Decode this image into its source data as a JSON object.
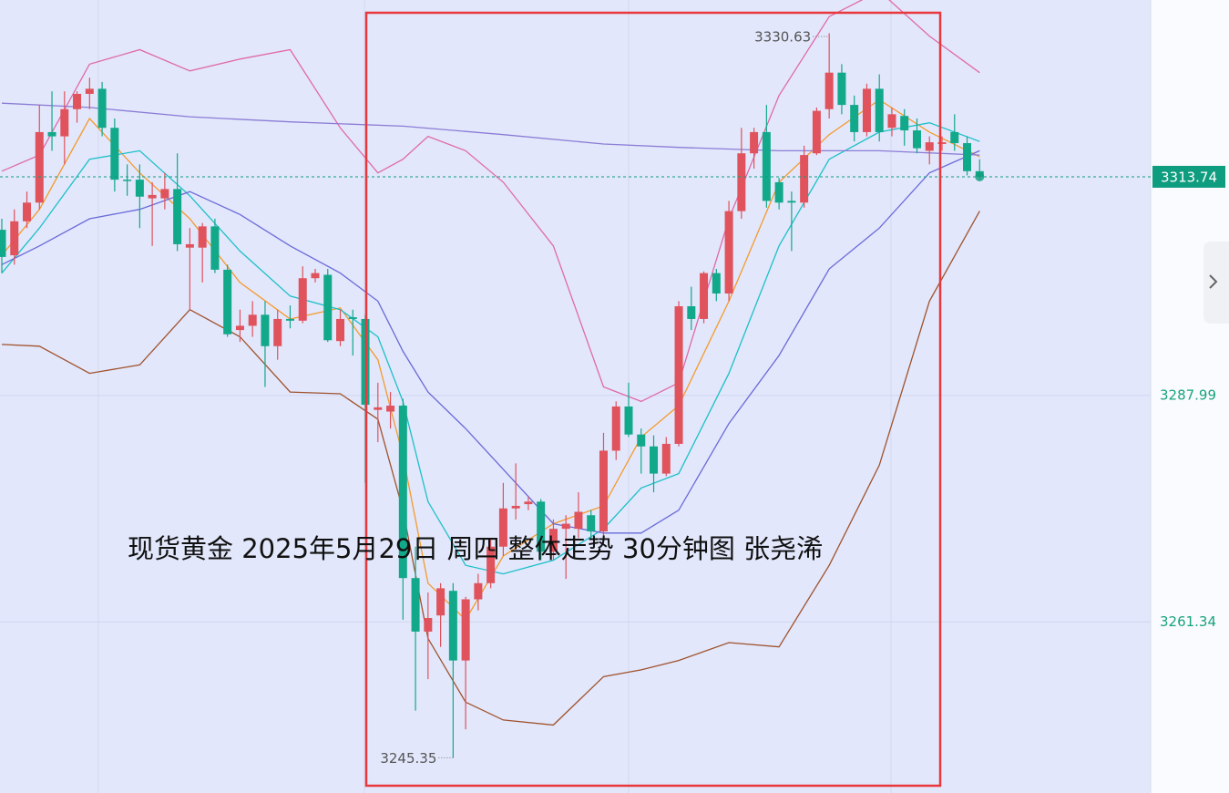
{
  "chart_data": {
    "type": "candlestick",
    "title": "现货黄金 2025年5月29日 周四 整体走势 30分钟图 张尧浠",
    "up_color": "#e0525c",
    "down_color": "#12a88a",
    "open": [
      3307.5,
      3304.5,
      3308.5,
      3310.7,
      3319.0,
      3318.5,
      3321.7,
      3323.5,
      3324.1,
      3319.5,
      3313.4,
      3313.4,
      3311.2,
      3311.2,
      3312.3,
      3305.4,
      3305.4,
      3307.9,
      3302.8,
      3295.7,
      3296.2,
      3297.5,
      3293.8,
      3297.0,
      3296.8,
      3301.8,
      3302.2,
      3294.4,
      3297.2,
      3297.0,
      3286.3,
      3286.1,
      3286.8,
      3266.5,
      3260.2,
      3262.1,
      3265.0,
      3256.8,
      3264.0,
      3265.9,
      3270.2,
      3274.7,
      3275.2,
      3275.5,
      3269.6,
      3272.3,
      3272.3,
      3273.9,
      3272.0,
      3281.5,
      3286.7,
      3283.4,
      3282.0,
      3278.8,
      3282.3,
      3298.5,
      3297.0,
      3302.4,
      3300.0,
      3309.7,
      3316.5,
      3319.0,
      3313.1,
      3310.9,
      3310.7,
      3316.5,
      3321.7,
      3326.0,
      3322.2,
      3319.0,
      3324.1,
      3319.5,
      3320.9,
      3319.2,
      3316.8,
      3317.6,
      3319.0,
      3317.7,
      3314.4
    ],
    "high": [
      3308.8,
      3309.9,
      3312.0,
      3322.2,
      3323.8,
      3323.8,
      3323.8,
      3325.4,
      3324.9,
      3320.6,
      3315.2,
      3315.2,
      3313.1,
      3314.2,
      3316.5,
      3307.7,
      3308.3,
      3308.8,
      3303.4,
      3298.1,
      3299.1,
      3299.1,
      3298.1,
      3298.6,
      3303.2,
      3302.9,
      3302.9,
      3298.1,
      3298.1,
      3297.5,
      3289.5,
      3288.4,
      3287.6,
      3270.2,
      3264.8,
      3265.9,
      3265.9,
      3264.3,
      3267.0,
      3271.2,
      3277.7,
      3280.0,
      3276.1,
      3275.8,
      3273.4,
      3273.9,
      3276.6,
      3274.5,
      3283.6,
      3287.3,
      3289.5,
      3284.1,
      3283.3,
      3283.1,
      3299.1,
      3300.8,
      3302.6,
      3302.9,
      3310.9,
      3319.5,
      3319.5,
      3322.2,
      3313.6,
      3312.0,
      3317.4,
      3321.9,
      3330.63,
      3327.0,
      3323.3,
      3324.7,
      3325.8,
      3321.9,
      3321.7,
      3320.6,
      3318.5,
      3318.5,
      3321.1,
      3318.5,
      3315.8
    ],
    "low": [
      3302.4,
      3303.4,
      3307.7,
      3309.9,
      3316.8,
      3315.2,
      3320.1,
      3321.7,
      3318.5,
      3312.0,
      3311.5,
      3307.7,
      3305.6,
      3309.9,
      3305.0,
      3298.1,
      3301.3,
      3302.4,
      3294.9,
      3294.3,
      3294.9,
      3289.0,
      3292.2,
      3295.9,
      3296.5,
      3301.3,
      3294.3,
      3293.8,
      3292.7,
      3277.7,
      3282.5,
      3284.1,
      3261.6,
      3250.9,
      3254.6,
      3258.4,
      3245.35,
      3248.7,
      3262.7,
      3265.3,
      3269.1,
      3273.4,
      3274.5,
      3268.6,
      3268.6,
      3266.4,
      3271.2,
      3271.2,
      3271.2,
      3280.4,
      3283.1,
      3278.8,
      3276.6,
      3278.5,
      3282.0,
      3295.7,
      3296.5,
      3299.1,
      3299.1,
      3308.8,
      3314.7,
      3310.1,
      3309.9,
      3305.0,
      3310.1,
      3316.3,
      3320.6,
      3321.1,
      3317.9,
      3318.5,
      3317.9,
      3318.5,
      3317.4,
      3316.5,
      3315.2,
      3316.8,
      3316.8,
      3313.9,
      3313.4
    ],
    "close": [
      3304.3,
      3308.5,
      3310.7,
      3319.0,
      3318.5,
      3321.7,
      3323.5,
      3324.1,
      3319.5,
      3313.4,
      3313.3,
      3311.4,
      3311.6,
      3312.3,
      3305.8,
      3305.8,
      3307.9,
      3302.8,
      3295.2,
      3296.2,
      3297.5,
      3293.8,
      3297.0,
      3296.8,
      3301.8,
      3302.4,
      3294.5,
      3297.0,
      3297.0,
      3286.9,
      3286.6,
      3286.8,
      3266.5,
      3260.2,
      3261.8,
      3265.3,
      3256.8,
      3264.0,
      3265.9,
      3270.2,
      3274.7,
      3275.0,
      3275.5,
      3269.6,
      3272.3,
      3272.9,
      3274.3,
      3272.0,
      3281.5,
      3286.7,
      3283.4,
      3282.0,
      3278.8,
      3282.3,
      3298.5,
      3297.0,
      3302.4,
      3300.0,
      3309.7,
      3316.5,
      3319.0,
      3310.9,
      3310.7,
      3310.7,
      3316.3,
      3321.5,
      3326.0,
      3322.2,
      3319.0,
      3324.1,
      3319.0,
      3321.1,
      3319.2,
      3317.1,
      3317.8,
      3317.8,
      3317.7,
      3314.4,
      3313.74
    ],
    "lines": [
      {
        "color": "#e06aa8",
        "x": [
          0,
          3,
          7,
          11,
          15,
          19,
          23,
          27,
          30,
          32,
          34,
          37,
          40,
          44,
          48,
          51,
          54,
          58,
          62,
          66,
          70,
          74,
          78
        ],
        "values": [
          3314.4,
          3316.3,
          3327.0,
          3328.7,
          3326.2,
          3327.6,
          3328.7,
          3319.5,
          3314.2,
          3315.8,
          3318.5,
          3316.8,
          3313.1,
          3305.6,
          3289.0,
          3287.3,
          3289.5,
          3308.8,
          3323.3,
          3332.6,
          3335.6,
          3330.3,
          3326.0
        ]
      },
      {
        "color": "#a0522d",
        "x": [
          0,
          3,
          7,
          11,
          15,
          19,
          23,
          27,
          30,
          32,
          34,
          37,
          40,
          44,
          48,
          51,
          54,
          58,
          62,
          66,
          70,
          74,
          78
        ],
        "values": [
          3294.0,
          3293.8,
          3290.6,
          3291.6,
          3298.1,
          3294.9,
          3288.4,
          3288.2,
          3285.2,
          3274.5,
          3259.4,
          3251.9,
          3249.8,
          3249.2,
          3254.9,
          3255.7,
          3256.8,
          3258.9,
          3258.4,
          3268.0,
          3279.8,
          3299.1,
          3309.7
        ]
      },
      {
        "color": "#f59a2c",
        "x": [
          0,
          3,
          7,
          11,
          15,
          19,
          23,
          27,
          30,
          32,
          34,
          37,
          40,
          44,
          48,
          51,
          54,
          58,
          62,
          66,
          70,
          74,
          78
        ],
        "values": [
          3304.5,
          3309.9,
          3320.6,
          3314.2,
          3308.8,
          3301.3,
          3297.0,
          3298.3,
          3292.2,
          3280.9,
          3265.9,
          3261.6,
          3269.1,
          3272.9,
          3275.0,
          3283.1,
          3286.8,
          3299.1,
          3313.1,
          3318.7,
          3322.8,
          3319.0,
          3316.1
        ]
      },
      {
        "color": "#1cc0c8",
        "x": [
          0,
          3,
          7,
          11,
          15,
          19,
          23,
          27,
          30,
          32,
          34,
          37,
          40,
          44,
          48,
          51,
          54,
          58,
          62,
          66,
          70,
          74,
          78
        ],
        "values": [
          3302.4,
          3307.7,
          3315.8,
          3316.8,
          3311.5,
          3305.0,
          3299.7,
          3298.1,
          3294.9,
          3287.3,
          3275.5,
          3268.0,
          3267.0,
          3268.6,
          3272.3,
          3277.1,
          3278.8,
          3290.6,
          3305.6,
          3315.8,
          3319.0,
          3320.1,
          3317.9
        ]
      },
      {
        "color": "#6a6ad8",
        "x": [
          0,
          3,
          7,
          11,
          15,
          19,
          23,
          27,
          30,
          32,
          34,
          37,
          40,
          44,
          48,
          51,
          54,
          58,
          62,
          66,
          70,
          74,
          78
        ],
        "values": [
          3303.4,
          3305.6,
          3308.8,
          3309.9,
          3312.0,
          3309.3,
          3305.6,
          3302.4,
          3299.1,
          3293.2,
          3288.4,
          3284.1,
          3279.3,
          3272.9,
          3271.8,
          3271.8,
          3274.5,
          3284.7,
          3292.7,
          3302.9,
          3307.7,
          3314.2,
          3316.8
        ]
      },
      {
        "color": "#8c7cd6",
        "x": [
          0,
          7,
          15,
          23,
          32,
          40,
          48,
          54,
          62,
          70,
          78
        ],
        "values": [
          3322.4,
          3321.9,
          3320.8,
          3320.2,
          3319.7,
          3318.7,
          3317.6,
          3317.2,
          3316.8,
          3316.8,
          3316.3
        ]
      }
    ],
    "ylim": [
      3241.2,
      3334.55
    ],
    "yticks": [
      3287.99,
      3261.34
    ],
    "grid": true,
    "current_price": 3313.74,
    "current_price_color": "#0f9d7f",
    "tick_color": "#17a37e"
  }
}
